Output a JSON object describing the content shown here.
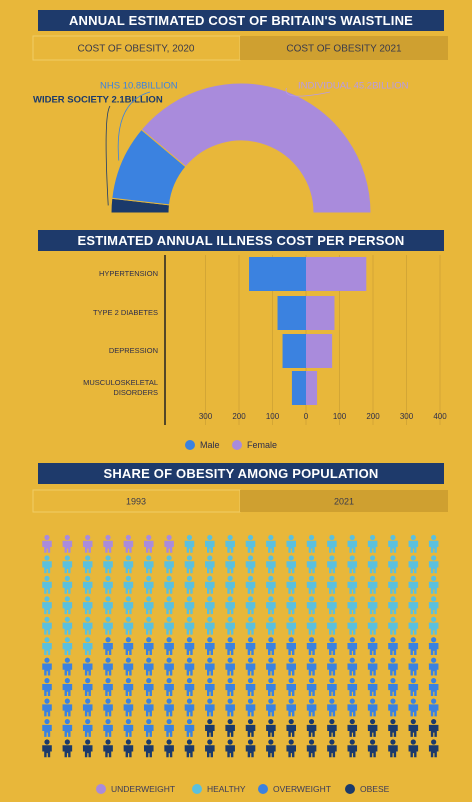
{
  "chart_data": [
    {
      "type": "semi-donut",
      "title": "ANNUAL ESTIMATED COST OF BRITAIN'S WAISTLINE",
      "tabs": [
        "COST OF OBESITY, 2020",
        "COST OF OBESITY 2021"
      ],
      "values": [
        2.1,
        10.8,
        45.2
      ],
      "value_labels": [
        "WIDER SOCIETY 2.1BILLION",
        "NHS 10.8BILLION",
        "INDIVIDUAL 45.2BILLION"
      ],
      "colors": [
        "#1b3a6b",
        "#3b82e0",
        "#a98bdc"
      ]
    },
    {
      "type": "butterfly-bar",
      "title": "ESTIMATED ANNUAL ILLNESS COST PER PERSON",
      "categories": [
        "HYPERTENSION",
        "TYPE 2 DIABETES",
        "DEPRESSION",
        "MUSCULOSKELETAL DISORDERS"
      ],
      "series": [
        {
          "name": "Male",
          "color": "#3b82e0",
          "values": [
            -170,
            -85,
            -70,
            -42
          ]
        },
        {
          "name": "Female",
          "color": "#a98bdc",
          "values": [
            180,
            85,
            78,
            33
          ]
        }
      ],
      "xlim": [
        -400,
        400
      ],
      "xticks": [
        {
          "value": -300,
          "label": "300"
        },
        {
          "value": -200,
          "label": "200"
        },
        {
          "value": -100,
          "label": "100"
        },
        0,
        100,
        200,
        300,
        400
      ],
      "grid": true
    },
    {
      "type": "pictogram",
      "title": "SHARE OF OBESITY AMONG POPULATION",
      "tabs": [
        "1993",
        "2021"
      ],
      "categories": [
        "UNDERWEIGHT",
        "HEALTHY",
        "OVERWEIGHT",
        "OBESE"
      ],
      "values": [
        7,
        96,
        85,
        32
      ],
      "colors": [
        "#a98bdc",
        "#5bc0de",
        "#3b82e0",
        "#1b3a6b"
      ]
    }
  ]
}
